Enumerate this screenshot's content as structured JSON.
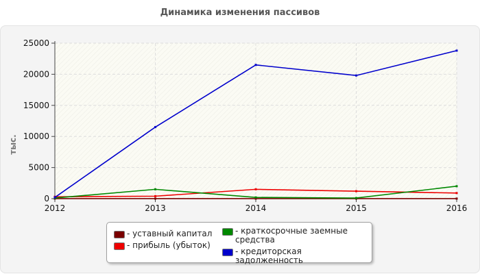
{
  "chart_data": {
    "type": "line",
    "title": "Динамика изменения пассивов",
    "ylabel": "тыс.",
    "xlabel": "",
    "x": [
      "2012",
      "2013",
      "2014",
      "2015",
      "2016"
    ],
    "ylim": [
      0,
      25000
    ],
    "yticks": [
      "0",
      "5000",
      "10000",
      "15000",
      "20000",
      "25000"
    ],
    "grid": true,
    "legend_position": "bottom",
    "series": [
      {
        "name": "- уставный капитал",
        "color": "#7a0000",
        "values": [
          10,
          10,
          10,
          10,
          10
        ]
      },
      {
        "name": "- прибыль (убыток)",
        "color": "#ee0000",
        "values": [
          300,
          400,
          1500,
          1200,
          900
        ]
      },
      {
        "name": "- краткосрочные заемные средства",
        "color": "#008800",
        "values": [
          100,
          1500,
          200,
          100,
          2000
        ]
      },
      {
        "name": "- кредиторская задолженность",
        "color": "#0000cc",
        "values": [
          200,
          11500,
          21500,
          19800,
          23800
        ]
      }
    ]
  }
}
